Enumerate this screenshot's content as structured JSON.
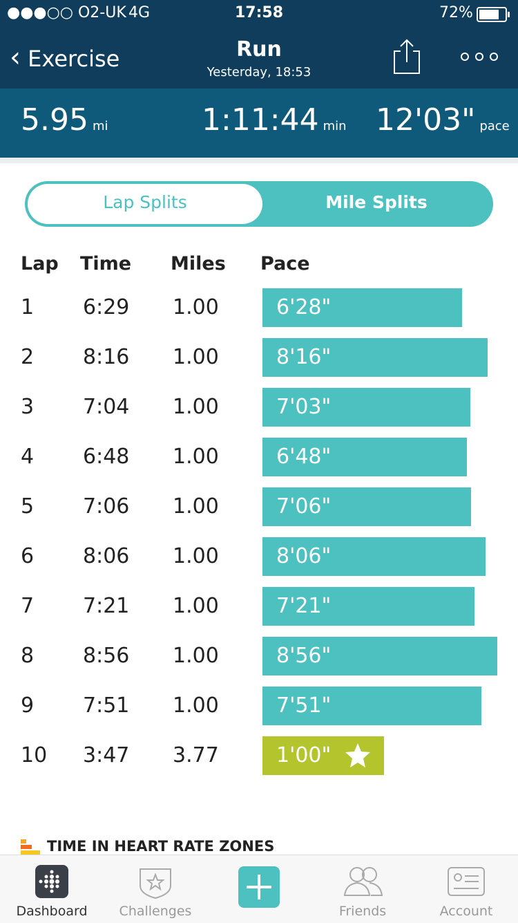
{
  "status_bar": {
    "carrier": "●●●○○ O2-UK",
    "network": "4G",
    "time": "17:58",
    "battery": "72%"
  },
  "header": {
    "back": "Exercise",
    "title": "Run",
    "subtitle": "Yesterday, 18:53"
  },
  "stats": [
    {
      "value": "5.95",
      "unit": "mi"
    },
    {
      "value": "1:11:44",
      "unit": "min"
    },
    {
      "value": "12'03\"",
      "unit": "pace"
    }
  ],
  "tabs": [
    "Lap Splits",
    "Mile Splits"
  ],
  "table": {
    "columns": [
      "Lap",
      "Time",
      "Miles",
      "Pace"
    ],
    "rows": [
      {
        "lap": "1",
        "time": "6:29",
        "miles": "1.00",
        "pace": "6'28\"",
        "color": "#4cc1c0"
      },
      {
        "lap": "2",
        "time": "8:16",
        "miles": "1.00",
        "pace": "8'16\"",
        "color": "#4cc1c0"
      },
      {
        "lap": "3",
        "time": "7:04",
        "miles": "1.00",
        "pace": "7'03\"",
        "color": "#4cc1c0"
      },
      {
        "lap": "4",
        "time": "6:48",
        "miles": "1.00",
        "pace": "6'48\"",
        "color": "#4cc1c0"
      },
      {
        "lap": "5",
        "time": "7:06",
        "miles": "1.00",
        "pace": "7'06\"",
        "color": "#4cc1c0"
      },
      {
        "lap": "6",
        "time": "8:06",
        "miles": "1.00",
        "pace": "8'06\"",
        "color": "#4cc1c0"
      },
      {
        "lap": "7",
        "time": "7:21",
        "miles": "1.00",
        "pace": "7'21\"",
        "color": "#4cc1c0"
      },
      {
        "lap": "8",
        "time": "8:56",
        "miles": "1.00",
        "pace": "8'56\"",
        "color": "#4cc1c0"
      },
      {
        "lap": "9",
        "time": "7:51",
        "miles": "1.00",
        "pace": "7'51\"",
        "color": "#4cc1c0"
      },
      {
        "lap": "10",
        "time": "3:47",
        "miles": "3.77",
        "pace": "1'00\"",
        "color": "#b3c42c",
        "star": true
      }
    ]
  },
  "section_title": "TIME IN HEART RATE ZONES",
  "nav": [
    "Dashboard",
    "Challenges",
    "Friends",
    "Account"
  ]
}
